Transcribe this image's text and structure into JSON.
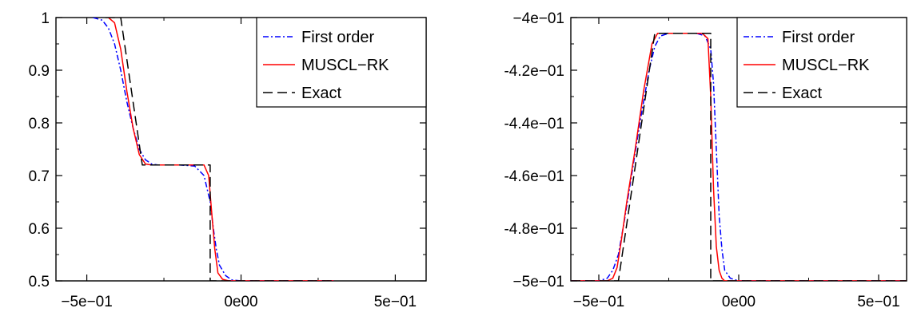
{
  "chart_data": [
    {
      "type": "line",
      "title": "",
      "xlabel": "",
      "ylabel": "",
      "xlim": [
        -0.6,
        0.6
      ],
      "ylim": [
        0.5,
        1.0
      ],
      "x_ticks": [
        -0.5,
        0.0,
        0.5
      ],
      "x_tick_labels": [
        "−5e−01",
        "0e00",
        "5e−01"
      ],
      "y_ticks": [
        0.5,
        0.6,
        0.7,
        0.8,
        0.9,
        1.0
      ],
      "y_tick_labels": [
        "0.5",
        "0.6",
        "0.7",
        "0.8",
        "0.9",
        "1"
      ],
      "grid": false,
      "legend_position": "top-right",
      "series": [
        {
          "name": "First order",
          "color": "#0000ff",
          "dash": "dashdot",
          "x": [
            -0.48,
            -0.45,
            -0.43,
            -0.41,
            -0.39,
            -0.37,
            -0.35,
            -0.33,
            -0.31,
            -0.29,
            -0.27,
            -0.25,
            -0.2,
            -0.15,
            -0.12,
            -0.1,
            -0.09,
            -0.08,
            -0.07,
            -0.05,
            -0.03,
            0.0,
            0.3
          ],
          "y": [
            1.0,
            0.995,
            0.98,
            0.95,
            0.9,
            0.84,
            0.79,
            0.75,
            0.73,
            0.722,
            0.72,
            0.72,
            0.72,
            0.718,
            0.7,
            0.65,
            0.6,
            0.56,
            0.53,
            0.51,
            0.502,
            0.5,
            0.5
          ]
        },
        {
          "name": "MUSCL−RK",
          "color": "#ff0000",
          "dash": "solid",
          "x": [
            -0.43,
            -0.41,
            -0.39,
            -0.37,
            -0.35,
            -0.33,
            -0.31,
            -0.29,
            -0.27,
            -0.2,
            -0.12,
            -0.105,
            -0.095,
            -0.085,
            -0.075,
            -0.06,
            -0.04,
            0.3
          ],
          "y": [
            1.0,
            0.99,
            0.94,
            0.86,
            0.79,
            0.74,
            0.722,
            0.72,
            0.72,
            0.72,
            0.72,
            0.7,
            0.63,
            0.56,
            0.515,
            0.503,
            0.5,
            0.5
          ]
        },
        {
          "name": "Exact",
          "color": "#000000",
          "dash": "dashed",
          "x": [
            -0.44,
            -0.39,
            -0.32,
            -0.1,
            -0.1,
            0.3
          ],
          "y": [
            1.0,
            1.0,
            0.72,
            0.72,
            0.5,
            0.5
          ]
        }
      ]
    },
    {
      "type": "line",
      "title": "",
      "xlabel": "",
      "ylabel": "",
      "xlim": [
        -0.6,
        0.6
      ],
      "ylim": [
        -0.5,
        -0.4
      ],
      "x_ticks": [
        -0.5,
        0.0,
        0.5
      ],
      "x_tick_labels": [
        "−5e−01",
        "0e00",
        "5e−01"
      ],
      "y_ticks": [
        -0.5,
        -0.48,
        -0.46,
        -0.44,
        -0.42,
        -0.4
      ],
      "y_tick_labels": [
        "−5e−01",
        "-4.8e−01",
        "-4.6e−01",
        "-4.4e−01",
        "-4.2e−01",
        "−4e−01"
      ],
      "grid": false,
      "legend_position": "top-right",
      "series": [
        {
          "name": "First order",
          "color": "#0000ff",
          "dash": "dashdot",
          "x": [
            -0.6,
            -0.5,
            -0.47,
            -0.45,
            -0.43,
            -0.41,
            -0.38,
            -0.35,
            -0.32,
            -0.3,
            -0.28,
            -0.25,
            -0.2,
            -0.15,
            -0.12,
            -0.1,
            -0.09,
            -0.08,
            -0.07,
            -0.06,
            -0.05,
            -0.03,
            0.0,
            0.6
          ],
          "y": [
            -0.5,
            -0.5,
            -0.499,
            -0.496,
            -0.49,
            -0.478,
            -0.458,
            -0.438,
            -0.42,
            -0.411,
            -0.407,
            -0.406,
            -0.406,
            -0.406,
            -0.407,
            -0.412,
            -0.425,
            -0.45,
            -0.475,
            -0.488,
            -0.496,
            -0.499,
            -0.5,
            -0.5
          ]
        },
        {
          "name": "MUSCL−RK",
          "color": "#ff0000",
          "dash": "solid",
          "x": [
            -0.6,
            -0.47,
            -0.45,
            -0.435,
            -0.42,
            -0.4,
            -0.37,
            -0.34,
            -0.31,
            -0.29,
            -0.27,
            -0.2,
            -0.13,
            -0.11,
            -0.1,
            -0.09,
            -0.08,
            -0.07,
            -0.06,
            -0.05,
            -0.04,
            0.6
          ],
          "y": [
            -0.5,
            -0.5,
            -0.499,
            -0.495,
            -0.485,
            -0.47,
            -0.45,
            -0.428,
            -0.41,
            -0.406,
            -0.406,
            -0.406,
            -0.406,
            -0.408,
            -0.43,
            -0.465,
            -0.487,
            -0.496,
            -0.499,
            -0.5,
            -0.5,
            -0.5
          ]
        },
        {
          "name": "Exact",
          "color": "#000000",
          "dash": "dashed",
          "x": [
            -0.6,
            -0.43,
            -0.43,
            -0.3,
            -0.1,
            -0.1,
            0.6
          ],
          "y": [
            -0.5,
            -0.5,
            -0.5,
            -0.406,
            -0.406,
            -0.5,
            -0.5
          ]
        }
      ]
    }
  ]
}
